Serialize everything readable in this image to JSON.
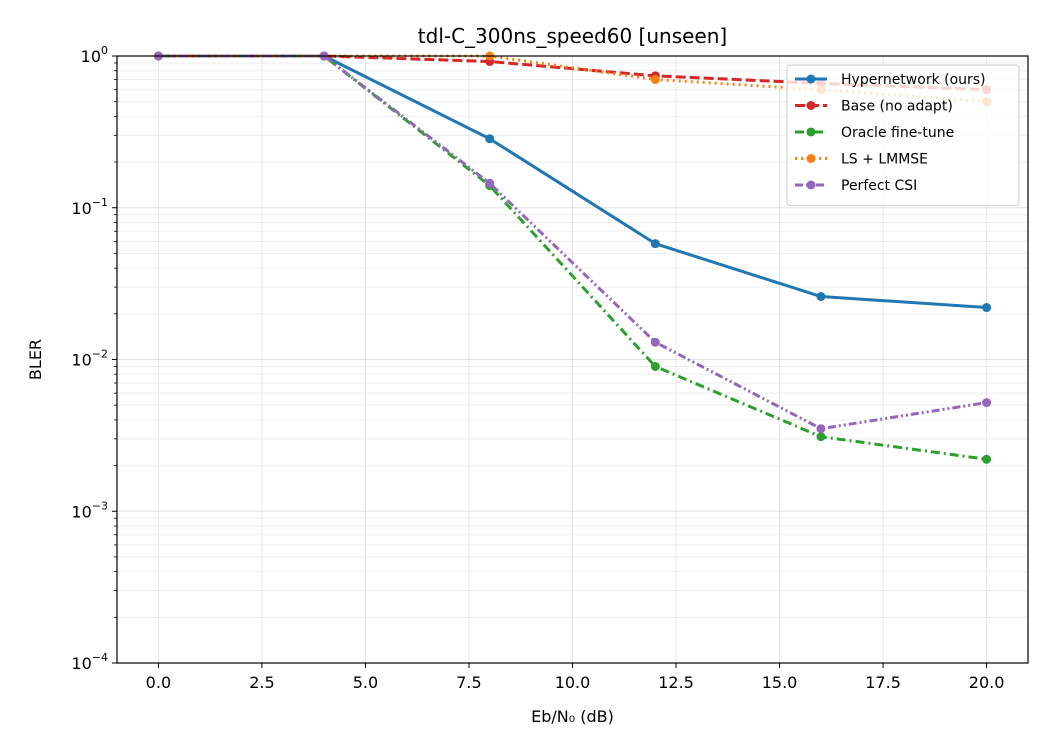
{
  "chart_data": {
    "type": "line",
    "title": "tdl-C_300ns_speed60  [unseen]",
    "xlabel": "Eb/N₀ (dB)",
    "ylabel": "BLER",
    "x": [
      0,
      4,
      8,
      12,
      16,
      20
    ],
    "xlim": [
      -1,
      21
    ],
    "ylim": [
      0.0001,
      1
    ],
    "yscale": "log",
    "xticks": [
      0.0,
      2.5,
      5.0,
      7.5,
      10.0,
      12.5,
      15.0,
      17.5,
      20.0
    ],
    "xtick_labels": [
      "0.0",
      "2.5",
      "5.0",
      "7.5",
      "10.0",
      "12.5",
      "15.0",
      "17.5",
      "20.0"
    ],
    "yticks": [
      {
        "base": "10",
        "exp": "−4",
        "value": 0.0001
      },
      {
        "base": "10",
        "exp": "−3",
        "value": 0.001
      },
      {
        "base": "10",
        "exp": "−2",
        "value": 0.01
      },
      {
        "base": "10",
        "exp": "−1",
        "value": 0.1
      },
      {
        "base": "10",
        "exp": "0",
        "value": 1
      }
    ],
    "grid": true,
    "legend_position": "top-right",
    "series": [
      {
        "name": "Hypernetwork (ours)",
        "color": "#1f77b4",
        "dash": "solid",
        "values": [
          1.0,
          1.0,
          0.285,
          0.058,
          0.026,
          0.022
        ]
      },
      {
        "name": "Base (no adapt)",
        "color": "#d62728",
        "dash": "dashed",
        "values": [
          1.0,
          1.0,
          0.92,
          0.74,
          0.66,
          0.6
        ]
      },
      {
        "name": "Oracle fine-tune",
        "color": "#2ca02c",
        "dash": "dashdot",
        "values": [
          1.0,
          1.0,
          0.14,
          0.009,
          0.0031,
          0.0022
        ]
      },
      {
        "name": "LS + LMMSE",
        "color": "#ff7f0e",
        "dash": "dotted",
        "values": [
          1.0,
          1.0,
          1.0,
          0.7,
          0.6,
          0.5
        ]
      },
      {
        "name": "Perfect CSI",
        "color": "#9467bd",
        "dash": "dashdotdot",
        "values": [
          1.0,
          1.0,
          0.145,
          0.013,
          0.0035,
          0.0052
        ]
      }
    ]
  }
}
